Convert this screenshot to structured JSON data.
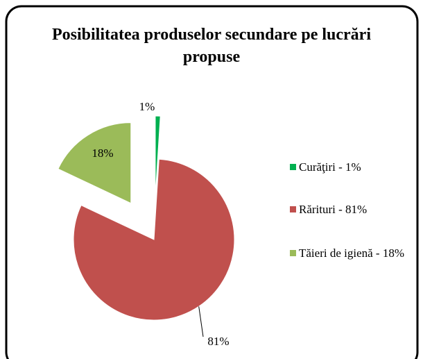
{
  "chart_data": {
    "type": "pie",
    "title": "Posibilitatea produselor secundare pe lucrări propuse",
    "categories": [
      "Curăţiri - 1%",
      "Rărituri - 81%",
      "Tăieri de igienă - 18%"
    ],
    "values": [
      1,
      81,
      18
    ],
    "value_labels": [
      "1%",
      "81%",
      "18%"
    ],
    "colors": [
      "#00b050",
      "#c0504d",
      "#9bbb59"
    ],
    "legend": "right"
  }
}
